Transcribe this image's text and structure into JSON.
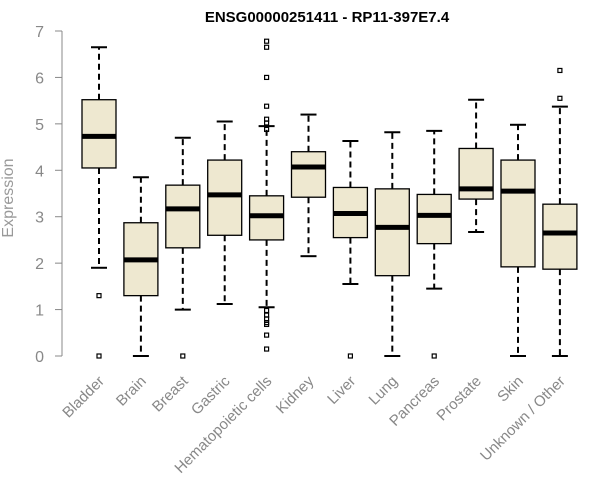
{
  "chart_data": {
    "type": "boxplot",
    "title": "ENSG00000251411 - RP11-397E7.4",
    "ylabel": "Expression",
    "xlabel": "",
    "ylim": [
      0,
      7
    ],
    "yticks": [
      0,
      1,
      2,
      3,
      4,
      5,
      6,
      7
    ],
    "grid": false,
    "box_color": "#EEE8D0",
    "categories": [
      "Bladder",
      "Brain",
      "Breast",
      "Gastric",
      "Hematopoietic cells",
      "Kidney",
      "Liver",
      "Lung",
      "Pancreas",
      "Prostate",
      "Skin",
      "Unknown / Other"
    ],
    "boxes": [
      {
        "whisker_low": 1.9,
        "q1": 4.05,
        "median": 4.73,
        "q3": 5.52,
        "whisker_high": 6.65,
        "outliers": [
          1.3,
          0.0
        ]
      },
      {
        "whisker_low": 0.0,
        "q1": 1.3,
        "median": 2.07,
        "q3": 2.87,
        "whisker_high": 3.85,
        "outliers": []
      },
      {
        "whisker_low": 1.0,
        "q1": 2.33,
        "median": 3.17,
        "q3": 3.68,
        "whisker_high": 4.7,
        "outliers": [
          0.0
        ]
      },
      {
        "whisker_low": 1.12,
        "q1": 2.6,
        "median": 3.47,
        "q3": 4.22,
        "whisker_high": 5.05,
        "outliers": []
      },
      {
        "whisker_low": 1.05,
        "q1": 2.5,
        "median": 3.02,
        "q3": 3.45,
        "whisker_high": 4.95,
        "outliers": [
          6.78,
          6.65,
          6.0,
          5.38,
          5.02,
          5.1,
          4.88,
          0.98,
          0.88,
          0.8,
          0.72,
          0.68,
          0.45,
          0.15
        ]
      },
      {
        "whisker_low": 2.15,
        "q1": 3.42,
        "median": 4.07,
        "q3": 4.4,
        "whisker_high": 5.2,
        "outliers": []
      },
      {
        "whisker_low": 1.55,
        "q1": 2.55,
        "median": 3.07,
        "q3": 3.63,
        "whisker_high": 4.63,
        "outliers": [
          0.0
        ]
      },
      {
        "whisker_low": 0.0,
        "q1": 1.73,
        "median": 2.77,
        "q3": 3.6,
        "whisker_high": 4.82,
        "outliers": []
      },
      {
        "whisker_low": 1.45,
        "q1": 2.42,
        "median": 3.03,
        "q3": 3.48,
        "whisker_high": 4.85,
        "outliers": [
          0.0
        ]
      },
      {
        "whisker_low": 2.67,
        "q1": 3.38,
        "median": 3.6,
        "q3": 4.47,
        "whisker_high": 5.52,
        "outliers": []
      },
      {
        "whisker_low": 0.0,
        "q1": 1.92,
        "median": 3.55,
        "q3": 4.22,
        "whisker_high": 4.98,
        "outliers": []
      },
      {
        "whisker_low": 0.0,
        "q1": 1.87,
        "median": 2.65,
        "q3": 3.27,
        "whisker_high": 5.37,
        "outliers": [
          6.15,
          5.55
        ]
      }
    ]
  }
}
